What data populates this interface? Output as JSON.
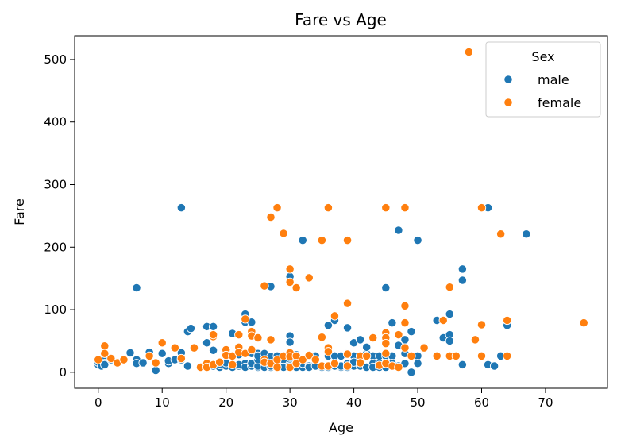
{
  "chart_data": {
    "type": "scatter",
    "title": "Fare vs Age",
    "xlabel": "Age",
    "ylabel": "Fare",
    "xlim": [
      -3.7,
      79.7
    ],
    "ylim": [
      -25.6,
      538
    ],
    "xticks": [
      0,
      10,
      20,
      30,
      40,
      50,
      60,
      70
    ],
    "yticks": [
      0,
      100,
      200,
      300,
      400,
      500
    ],
    "grid": false,
    "legend": {
      "title": "Sex",
      "placement": "top-right"
    },
    "series": [
      {
        "name": "male",
        "color": "#1f77b4",
        "points": [
          [
            0,
            14
          ],
          [
            0,
            12
          ],
          [
            0,
            16
          ],
          [
            0.5,
            10
          ],
          [
            1,
            20
          ],
          [
            1,
            14
          ],
          [
            1,
            12
          ],
          [
            2,
            20
          ],
          [
            3,
            16
          ],
          [
            5,
            31
          ],
          [
            6,
            135
          ],
          [
            6,
            20
          ],
          [
            6,
            14
          ],
          [
            7,
            15
          ],
          [
            8,
            32
          ],
          [
            8,
            25
          ],
          [
            9,
            3
          ],
          [
            10,
            30
          ],
          [
            11,
            14
          ],
          [
            11,
            18
          ],
          [
            12,
            20
          ],
          [
            13,
            263
          ],
          [
            13,
            31
          ],
          [
            13,
            20
          ],
          [
            14,
            65
          ],
          [
            14,
            10
          ],
          [
            14.5,
            70
          ],
          [
            17,
            73
          ],
          [
            17,
            47
          ],
          [
            17,
            10
          ],
          [
            18,
            73
          ],
          [
            18,
            35
          ],
          [
            18,
            10
          ],
          [
            19,
            8
          ],
          [
            19,
            12
          ],
          [
            20,
            10
          ],
          [
            20,
            15
          ],
          [
            20,
            30
          ],
          [
            21,
            10
          ],
          [
            21,
            62
          ],
          [
            21,
            8
          ],
          [
            22,
            10
          ],
          [
            22,
            30
          ],
          [
            22,
            28
          ],
          [
            22,
            12
          ],
          [
            23,
            93
          ],
          [
            23,
            80
          ],
          [
            23,
            10
          ],
          [
            23,
            14
          ],
          [
            23,
            8
          ],
          [
            24,
            10
          ],
          [
            24,
            30
          ],
          [
            24,
            80
          ],
          [
            24,
            10
          ],
          [
            24,
            14
          ],
          [
            25,
            8
          ],
          [
            25,
            30
          ],
          [
            25,
            10
          ],
          [
            25,
            20
          ],
          [
            25,
            26
          ],
          [
            26,
            10
          ],
          [
            26,
            14
          ],
          [
            26,
            8
          ],
          [
            26,
            30
          ],
          [
            27,
            137
          ],
          [
            27,
            14
          ],
          [
            27,
            25
          ],
          [
            27,
            8
          ],
          [
            27,
            10
          ],
          [
            28,
            26
          ],
          [
            28,
            8
          ],
          [
            28,
            14
          ],
          [
            28,
            10
          ],
          [
            29,
            26
          ],
          [
            29,
            10
          ],
          [
            29,
            20
          ],
          [
            29,
            8
          ],
          [
            30,
            58
          ],
          [
            30,
            153
          ],
          [
            30,
            48
          ],
          [
            30,
            13
          ],
          [
            30,
            26
          ],
          [
            30,
            8
          ],
          [
            30,
            10
          ],
          [
            31,
            28
          ],
          [
            31,
            10
          ],
          [
            31,
            8
          ],
          [
            31,
            18
          ],
          [
            32,
            211
          ],
          [
            32,
            10
          ],
          [
            32,
            8
          ],
          [
            32,
            14
          ],
          [
            33,
            26
          ],
          [
            33,
            10
          ],
          [
            33,
            8
          ],
          [
            34,
            26
          ],
          [
            34,
            14
          ],
          [
            34,
            10
          ],
          [
            35,
            10
          ],
          [
            35,
            8
          ],
          [
            36,
            75
          ],
          [
            36,
            10
          ],
          [
            36,
            26
          ],
          [
            36,
            8
          ],
          [
            37,
            26
          ],
          [
            37,
            83
          ],
          [
            37,
            10
          ],
          [
            38,
            8
          ],
          [
            38,
            10
          ],
          [
            38,
            26
          ],
          [
            39,
            8
          ],
          [
            39,
            71
          ],
          [
            39,
            30
          ],
          [
            39,
            14
          ],
          [
            40,
            26
          ],
          [
            40,
            47
          ],
          [
            40,
            10
          ],
          [
            40,
            16
          ],
          [
            41,
            52
          ],
          [
            41,
            14
          ],
          [
            41,
            10
          ],
          [
            41,
            26
          ],
          [
            42,
            30
          ],
          [
            42,
            40
          ],
          [
            42,
            26
          ],
          [
            42,
            8
          ],
          [
            43,
            26
          ],
          [
            43,
            14
          ],
          [
            43,
            8
          ],
          [
            44,
            14
          ],
          [
            44,
            26
          ],
          [
            44,
            8
          ],
          [
            45,
            26
          ],
          [
            45,
            135
          ],
          [
            45,
            8
          ],
          [
            45,
            14
          ],
          [
            46,
            79
          ],
          [
            46,
            26
          ],
          [
            46,
            14
          ],
          [
            47,
            227
          ],
          [
            47,
            43
          ],
          [
            47,
            10
          ],
          [
            48,
            52
          ],
          [
            48,
            30
          ],
          [
            48,
            14
          ],
          [
            49,
            65
          ],
          [
            49,
            26
          ],
          [
            49,
            0
          ],
          [
            50,
            211
          ],
          [
            50,
            26
          ],
          [
            50,
            14
          ],
          [
            51,
            40
          ],
          [
            53,
            83
          ],
          [
            54,
            55
          ],
          [
            55,
            93
          ],
          [
            55,
            60
          ],
          [
            55,
            50
          ],
          [
            57,
            165
          ],
          [
            57,
            147
          ],
          [
            57,
            12
          ],
          [
            61,
            263
          ],
          [
            61,
            12
          ],
          [
            62,
            10
          ],
          [
            63,
            26
          ],
          [
            64,
            75
          ],
          [
            64,
            26
          ],
          [
            67,
            221
          ]
        ]
      },
      {
        "name": "female",
        "color": "#ff7f0e",
        "points": [
          [
            0,
            20
          ],
          [
            1,
            42
          ],
          [
            1,
            30
          ],
          [
            2,
            22
          ],
          [
            3,
            15
          ],
          [
            4,
            20
          ],
          [
            8,
            26
          ],
          [
            9,
            15
          ],
          [
            10,
            47
          ],
          [
            12,
            39
          ],
          [
            13,
            22
          ],
          [
            15,
            39
          ],
          [
            16,
            8
          ],
          [
            17,
            14
          ],
          [
            17,
            8
          ],
          [
            18,
            57
          ],
          [
            18,
            60
          ],
          [
            18,
            12
          ],
          [
            19,
            16
          ],
          [
            20,
            36
          ],
          [
            20,
            27
          ],
          [
            21,
            26
          ],
          [
            21,
            12
          ],
          [
            22,
            60
          ],
          [
            22,
            40
          ],
          [
            22,
            32
          ],
          [
            23,
            85
          ],
          [
            23,
            30
          ],
          [
            24,
            65
          ],
          [
            24,
            58
          ],
          [
            24,
            36
          ],
          [
            25,
            55
          ],
          [
            26,
            138
          ],
          [
            26,
            20
          ],
          [
            26,
            16
          ],
          [
            27,
            248
          ],
          [
            27,
            52
          ],
          [
            27,
            14
          ],
          [
            28,
            263
          ],
          [
            28,
            8
          ],
          [
            28,
            20
          ],
          [
            29,
            222
          ],
          [
            29,
            26
          ],
          [
            30,
            165
          ],
          [
            30,
            144
          ],
          [
            30,
            31
          ],
          [
            30,
            25
          ],
          [
            30,
            8
          ],
          [
            31,
            135
          ],
          [
            31,
            26
          ],
          [
            31,
            14
          ],
          [
            32,
            20
          ],
          [
            33,
            151
          ],
          [
            33,
            27
          ],
          [
            34,
            20
          ],
          [
            35,
            211
          ],
          [
            35,
            10
          ],
          [
            35,
            56
          ],
          [
            36,
            263
          ],
          [
            36,
            39
          ],
          [
            36,
            33
          ],
          [
            36,
            10
          ],
          [
            37,
            90
          ],
          [
            37,
            14
          ],
          [
            39,
            211
          ],
          [
            39,
            110
          ],
          [
            39,
            29
          ],
          [
            39,
            10
          ],
          [
            41,
            26
          ],
          [
            41,
            15
          ],
          [
            42,
            26
          ],
          [
            43,
            55
          ],
          [
            44,
            11
          ],
          [
            45,
            263
          ],
          [
            45,
            63
          ],
          [
            45,
            55
          ],
          [
            45,
            46
          ],
          [
            45,
            30
          ],
          [
            45,
            14
          ],
          [
            46,
            10
          ],
          [
            47,
            60
          ],
          [
            47,
            8
          ],
          [
            48,
            263
          ],
          [
            48,
            106
          ],
          [
            48,
            79
          ],
          [
            48,
            39
          ],
          [
            49,
            26
          ],
          [
            51,
            39
          ],
          [
            53,
            26
          ],
          [
            54,
            83
          ],
          [
            55,
            136
          ],
          [
            55,
            26
          ],
          [
            56,
            26
          ],
          [
            58,
            512
          ],
          [
            59,
            52
          ],
          [
            60,
            263
          ],
          [
            60,
            76
          ],
          [
            60,
            26
          ],
          [
            63,
            221
          ],
          [
            64,
            83
          ],
          [
            64,
            26
          ],
          [
            76,
            79
          ]
        ]
      }
    ]
  }
}
